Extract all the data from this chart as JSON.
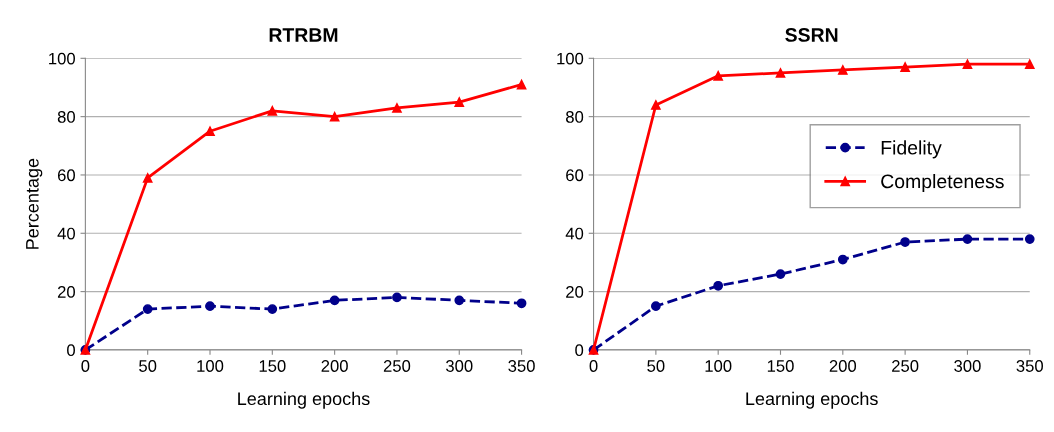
{
  "chart_data": [
    {
      "type": "line",
      "title": "RTRBM",
      "xlabel": "Learning epochs",
      "ylabel": "Percentage",
      "x": [
        0,
        50,
        100,
        150,
        200,
        250,
        300,
        350
      ],
      "series": [
        {
          "color": "#00008b",
          "values": [
            0,
            14,
            15,
            14,
            17,
            18,
            17,
            16
          ],
          "marker": "circle",
          "line_style": "dashed"
        },
        {
          "color": "#ff0000",
          "values": [
            0,
            59,
            75,
            82,
            80,
            83,
            85,
            91
          ],
          "marker": "triangle",
          "line_style": "solid"
        }
      ],
      "xlim": [
        0,
        350
      ],
      "xticks": [
        0,
        50,
        100,
        150,
        200,
        250,
        300,
        350
      ],
      "ylim": [
        0,
        100
      ],
      "yticks": [
        0,
        20,
        40,
        60,
        80,
        100
      ],
      "grid": "y"
    },
    {
      "type": "line",
      "title": "SSRN",
      "xlabel": "Learning epochs",
      "x": [
        0,
        50,
        100,
        150,
        200,
        250,
        300,
        350
      ],
      "series": [
        {
          "name": "Fidelity",
          "color": "#00008b",
          "values": [
            0,
            15,
            22,
            26,
            31,
            37,
            38,
            38
          ],
          "marker": "circle",
          "line_style": "dashed"
        },
        {
          "name": "Completeness",
          "color": "#ff0000",
          "values": [
            0,
            84,
            94,
            95,
            96,
            97,
            98,
            98
          ],
          "marker": "triangle",
          "line_style": "solid"
        }
      ],
      "xlim": [
        0,
        350
      ],
      "xticks": [
        0,
        50,
        100,
        150,
        200,
        250,
        300,
        350
      ],
      "ylim": [
        0,
        100
      ],
      "yticks": [
        0,
        20,
        40,
        60,
        80,
        100
      ],
      "grid": "y",
      "legend": "center right"
    }
  ]
}
